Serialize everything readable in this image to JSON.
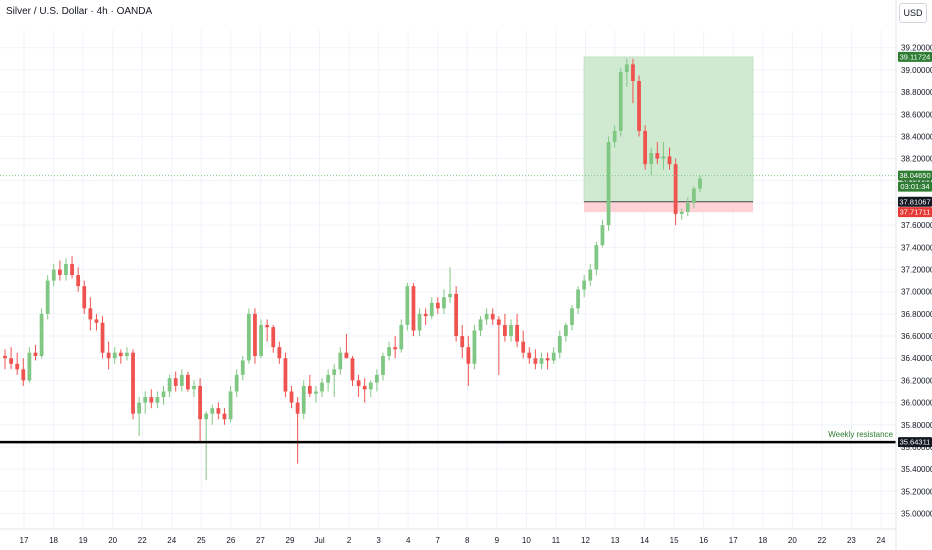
{
  "header": {
    "title": "Silver / U.S. Dollar · 4h · OANDA",
    "currency": "USD"
  },
  "colors": {
    "up": "#81c784",
    "down": "#ef5350",
    "grid": "#f0f3fa",
    "support_line": "#000000",
    "target_zone": "#c8e6c9",
    "stop_zone": "#ffcdd2",
    "entry_line": "#424242",
    "label_green": "#2e7d32",
    "label_red": "#e53935",
    "label_dark": "#131722"
  },
  "chart_data": {
    "type": "candlestick",
    "ylim": [
      34.86,
      39.36
    ],
    "y_ticks": [
      "39.20000",
      "39.00000",
      "38.80000",
      "38.60000",
      "38.40000",
      "38.20000",
      "38.00000",
      "37.80000",
      "37.60000",
      "37.40000",
      "37.20000",
      "37.00000",
      "36.80000",
      "36.60000",
      "36.40000",
      "36.20000",
      "36.00000",
      "35.80000",
      "35.60000",
      "35.40000",
      "35.20000",
      "35.00000"
    ],
    "x_ticks": [
      "17",
      "18",
      "19",
      "20",
      "22",
      "24",
      "25",
      "26",
      "27",
      "29",
      "Jul",
      "2",
      "3",
      "4",
      "7",
      "8",
      "9",
      "10",
      "11",
      "12",
      "13",
      "14",
      "15",
      "16",
      "17",
      "18",
      "20",
      "22",
      "23",
      "24"
    ],
    "candles": [
      [
        36.42,
        36.48,
        36.3,
        36.4
      ],
      [
        36.4,
        36.5,
        36.3,
        36.35
      ],
      [
        36.35,
        36.45,
        36.25,
        36.3
      ],
      [
        36.3,
        36.4,
        36.15,
        36.2
      ],
      [
        36.2,
        36.5,
        36.18,
        36.45
      ],
      [
        36.45,
        36.52,
        36.38,
        36.42
      ],
      [
        36.42,
        36.85,
        36.4,
        36.8
      ],
      [
        36.8,
        37.15,
        36.75,
        37.1
      ],
      [
        37.1,
        37.25,
        37.05,
        37.2
      ],
      [
        37.2,
        37.28,
        37.1,
        37.15
      ],
      [
        37.15,
        37.3,
        37.1,
        37.25
      ],
      [
        37.25,
        37.32,
        37.12,
        37.15
      ],
      [
        37.15,
        37.22,
        37.0,
        37.05
      ],
      [
        37.05,
        37.1,
        36.8,
        36.85
      ],
      [
        36.85,
        36.95,
        36.65,
        36.75
      ],
      [
        36.75,
        36.8,
        36.65,
        36.72
      ],
      [
        36.72,
        36.78,
        36.4,
        36.45
      ],
      [
        36.45,
        36.55,
        36.3,
        36.4
      ],
      [
        36.4,
        36.5,
        36.35,
        36.45
      ],
      [
        36.45,
        36.48,
        36.35,
        36.42
      ],
      [
        36.42,
        36.5,
        36.38,
        36.45
      ],
      [
        36.45,
        36.48,
        35.85,
        35.9
      ],
      [
        35.9,
        36.05,
        35.7,
        36.0
      ],
      [
        36.0,
        36.1,
        35.9,
        36.05
      ],
      [
        36.05,
        36.12,
        35.95,
        36.0
      ],
      [
        36.0,
        36.1,
        35.95,
        36.05
      ],
      [
        36.05,
        36.15,
        35.98,
        36.1
      ],
      [
        36.1,
        36.25,
        36.05,
        36.22
      ],
      [
        36.22,
        36.28,
        36.1,
        36.15
      ],
      [
        36.15,
        36.3,
        36.1,
        36.25
      ],
      [
        36.25,
        36.28,
        36.1,
        36.12
      ],
      [
        36.12,
        36.2,
        36.05,
        36.15
      ],
      [
        36.15,
        36.22,
        35.65,
        35.85
      ],
      [
        35.85,
        35.92,
        35.3,
        35.9
      ],
      [
        35.9,
        35.98,
        35.8,
        35.95
      ],
      [
        35.95,
        36.0,
        35.85,
        35.9
      ],
      [
        35.9,
        35.95,
        35.8,
        35.85
      ],
      [
        35.85,
        36.15,
        35.82,
        36.1
      ],
      [
        36.1,
        36.3,
        36.05,
        36.25
      ],
      [
        36.25,
        36.42,
        36.2,
        36.38
      ],
      [
        36.38,
        36.85,
        36.35,
        36.8
      ],
      [
        36.8,
        36.85,
        36.35,
        36.42
      ],
      [
        36.42,
        36.75,
        36.4,
        36.7
      ],
      [
        36.7,
        36.75,
        36.55,
        36.68
      ],
      [
        36.68,
        36.7,
        36.45,
        36.5
      ],
      [
        36.5,
        36.55,
        36.35,
        36.4
      ],
      [
        36.4,
        36.45,
        36.05,
        36.1
      ],
      [
        36.1,
        36.15,
        35.95,
        36.0
      ],
      [
        36.0,
        36.05,
        35.45,
        35.9
      ],
      [
        35.9,
        36.2,
        35.85,
        36.15
      ],
      [
        36.15,
        36.25,
        36.05,
        36.08
      ],
      [
        36.08,
        36.15,
        36.0,
        36.1
      ],
      [
        36.1,
        36.22,
        36.05,
        36.18
      ],
      [
        36.18,
        36.3,
        36.1,
        36.25
      ],
      [
        36.25,
        36.35,
        36.05,
        36.3
      ],
      [
        36.3,
        36.5,
        36.25,
        36.45
      ],
      [
        36.45,
        36.62,
        36.4,
        36.4
      ],
      [
        36.4,
        36.42,
        36.15,
        36.2
      ],
      [
        36.2,
        36.25,
        36.05,
        36.15
      ],
      [
        36.15,
        36.22,
        36.0,
        36.12
      ],
      [
        36.12,
        36.2,
        36.05,
        36.18
      ],
      [
        36.18,
        36.3,
        36.1,
        36.25
      ],
      [
        36.25,
        36.45,
        36.2,
        36.42
      ],
      [
        36.42,
        36.55,
        36.38,
        36.5
      ],
      [
        36.5,
        36.6,
        36.4,
        36.48
      ],
      [
        36.48,
        36.75,
        36.45,
        36.7
      ],
      [
        36.7,
        37.08,
        36.65,
        37.05
      ],
      [
        37.05,
        37.08,
        36.6,
        36.65
      ],
      [
        36.65,
        36.85,
        36.6,
        36.8
      ],
      [
        36.8,
        36.85,
        36.7,
        36.78
      ],
      [
        36.78,
        36.95,
        36.75,
        36.9
      ],
      [
        36.9,
        36.95,
        36.8,
        36.85
      ],
      [
        36.85,
        37.02,
        36.8,
        36.95
      ],
      [
        36.95,
        37.22,
        36.9,
        36.98
      ],
      [
        36.98,
        37.05,
        36.55,
        36.6
      ],
      [
        36.6,
        36.7,
        36.4,
        36.5
      ],
      [
        36.5,
        36.6,
        36.15,
        36.35
      ],
      [
        36.35,
        36.7,
        36.3,
        36.65
      ],
      [
        36.65,
        36.78,
        36.6,
        36.75
      ],
      [
        36.75,
        36.85,
        36.7,
        36.8
      ],
      [
        36.8,
        36.85,
        36.7,
        36.75
      ],
      [
        36.75,
        36.78,
        36.25,
        36.7
      ],
      [
        36.7,
        36.8,
        36.55,
        36.6
      ],
      [
        36.6,
        36.75,
        36.55,
        36.7
      ],
      [
        36.7,
        36.8,
        36.5,
        36.55
      ],
      [
        36.55,
        36.65,
        36.4,
        36.45
      ],
      [
        36.45,
        36.5,
        36.35,
        36.4
      ],
      [
        36.4,
        36.48,
        36.3,
        36.35
      ],
      [
        36.35,
        36.45,
        36.3,
        36.4
      ],
      [
        36.4,
        36.45,
        36.3,
        36.38
      ],
      [
        36.38,
        36.5,
        36.35,
        36.45
      ],
      [
        36.45,
        36.65,
        36.4,
        36.6
      ],
      [
        36.6,
        36.72,
        36.55,
        36.7
      ],
      [
        36.7,
        36.88,
        36.65,
        36.85
      ],
      [
        36.85,
        37.05,
        36.8,
        37.02
      ],
      [
        37.02,
        37.15,
        36.95,
        37.1
      ],
      [
        37.1,
        37.25,
        37.05,
        37.2
      ],
      [
        37.2,
        37.45,
        37.15,
        37.42
      ],
      [
        37.42,
        37.65,
        37.4,
        37.6
      ],
      [
        37.6,
        38.4,
        37.55,
        38.35
      ],
      [
        38.35,
        38.5,
        38.3,
        38.45
      ],
      [
        38.45,
        39.02,
        38.4,
        38.98
      ],
      [
        38.98,
        39.1,
        38.85,
        39.05
      ],
      [
        39.05,
        39.1,
        38.7,
        38.9
      ],
      [
        38.9,
        38.95,
        38.4,
        38.45
      ],
      [
        38.45,
        38.5,
        38.1,
        38.15
      ],
      [
        38.15,
        38.3,
        38.05,
        38.25
      ],
      [
        38.25,
        38.35,
        38.15,
        38.2
      ],
      [
        38.2,
        38.35,
        38.1,
        38.22
      ],
      [
        38.22,
        38.3,
        38.1,
        38.15
      ],
      [
        38.15,
        38.2,
        37.6,
        37.7
      ],
      [
        37.7,
        37.75,
        37.65,
        37.72
      ],
      [
        37.72,
        37.85,
        37.68,
        37.8
      ],
      [
        37.8,
        37.95,
        37.75,
        37.93
      ],
      [
        37.93,
        38.05,
        37.9,
        38.02
      ]
    ],
    "position": {
      "target": 39.11724,
      "entry": 37.81067,
      "stop": 37.71711
    },
    "support_level": 35.64311,
    "price_labels": [
      {
        "text": "39.11724",
        "color": "label_green"
      },
      {
        "text": "38.04650",
        "color": "label_green"
      },
      {
        "text": "03:01:34",
        "color": "label_green"
      },
      {
        "text": "37.81067",
        "color": "label_dark"
      },
      {
        "text": "37.71711",
        "color": "label_red"
      },
      {
        "text": "35.64311",
        "color": "label_dark"
      }
    ],
    "annotation": "Weekly resistance"
  }
}
